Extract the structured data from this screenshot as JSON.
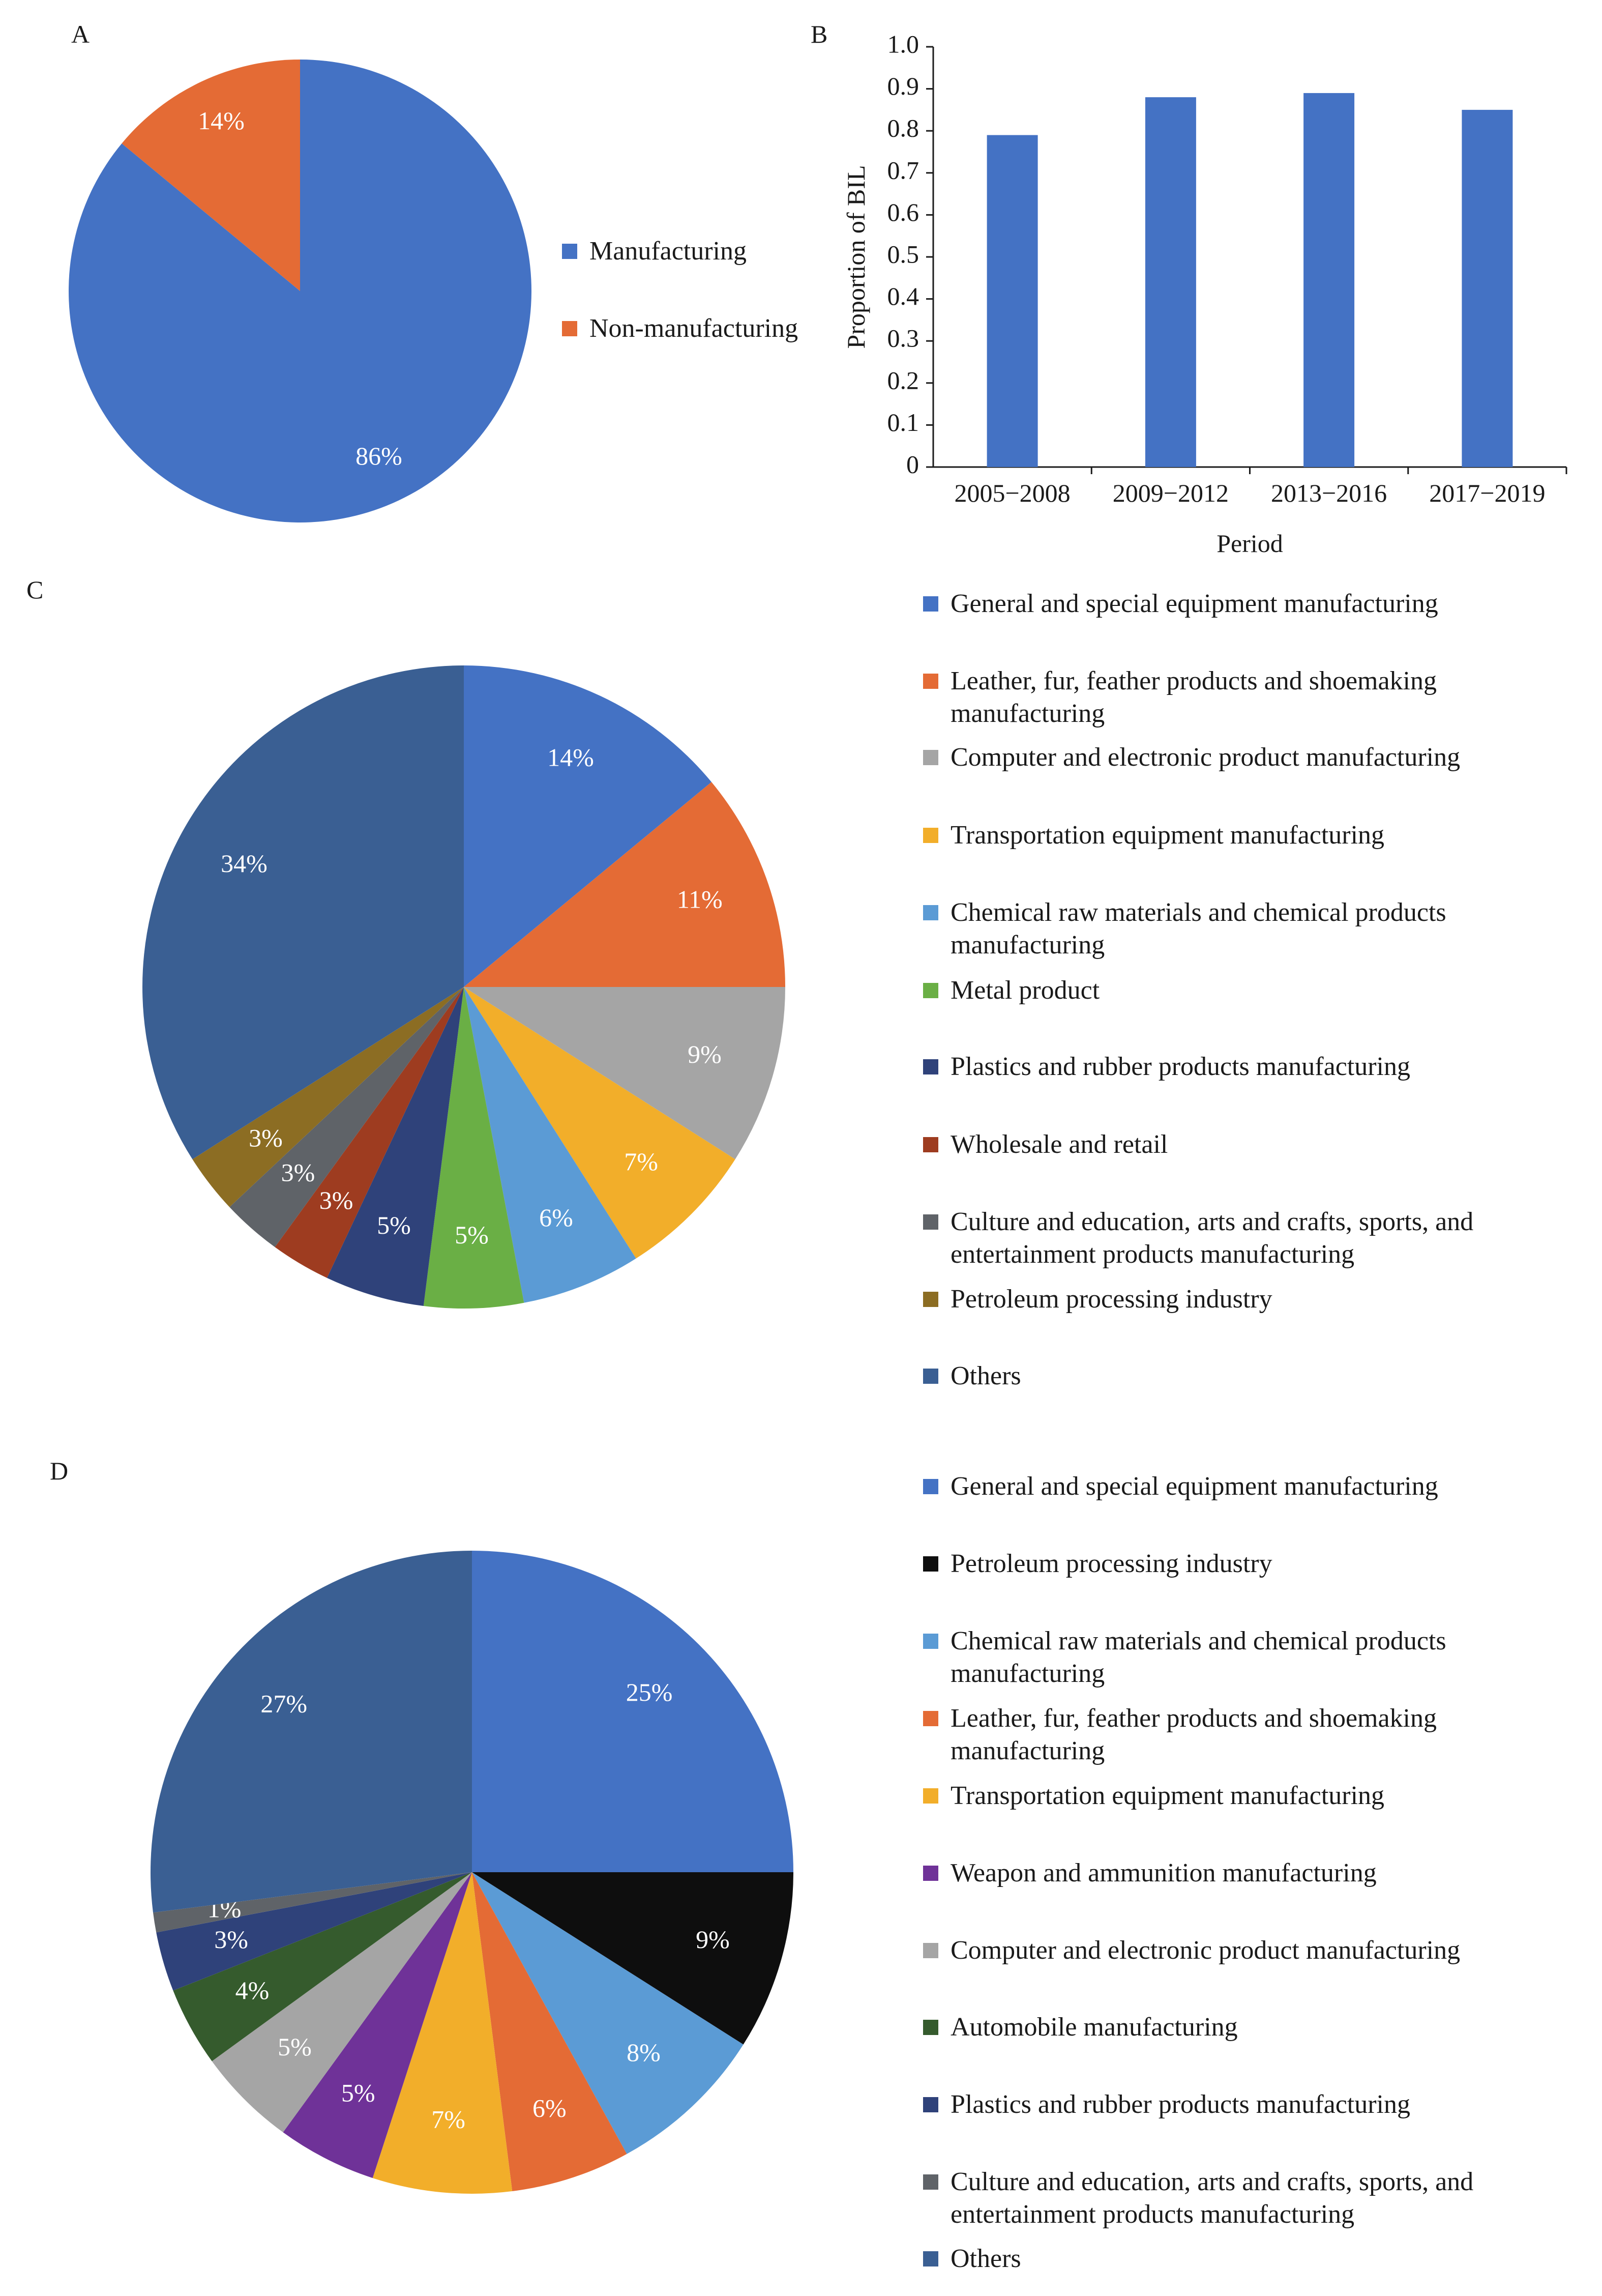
{
  "panels": {
    "a": "A",
    "b": "B",
    "c": "C",
    "d": "D"
  },
  "chart_data": [
    {
      "panel": "A",
      "type": "pie",
      "slices": [
        {
          "label": "Manufacturing",
          "value": 86,
          "display": "86%",
          "color": "#4472C4"
        },
        {
          "label": "Non-manufacturing",
          "value": 14,
          "display": "14%",
          "color": "#E46B35"
        }
      ],
      "legend_placement": "right"
    },
    {
      "panel": "B",
      "type": "bar",
      "categories": [
        "2005−2008",
        "2009−2012",
        "2013−2016",
        "2017−2019"
      ],
      "values": [
        0.79,
        0.88,
        0.89,
        0.85
      ],
      "color": "#4472C4",
      "xlabel": "Period",
      "ylabel": "Proportion of BIL",
      "ylim": [
        0,
        1.0
      ],
      "yticks": [
        "0",
        "0.1",
        "0.2",
        "0.3",
        "0.4",
        "0.5",
        "0.6",
        "0.7",
        "0.8",
        "0.9",
        "1.0"
      ],
      "grid": false
    },
    {
      "panel": "C",
      "type": "pie",
      "slices": [
        {
          "label": "General and special equipment manufacturing",
          "value": 14,
          "display": "14%",
          "color": "#4472C4"
        },
        {
          "label": "Leather, fur, feather products and shoemaking manufacturing",
          "value": 11,
          "display": "11%",
          "color": "#E46B35"
        },
        {
          "label": "Computer and electronic product manufacturing",
          "value": 9,
          "display": "9%",
          "color": "#A5A5A5"
        },
        {
          "label": "Transportation equipment manufacturing",
          "value": 7,
          "display": "7%",
          "color": "#F2AE2A"
        },
        {
          "label": "Chemical raw materials and chemical products manufacturing",
          "value": 6,
          "display": "6%",
          "color": "#5B9BD5"
        },
        {
          "label": "Metal product",
          "value": 5,
          "display": "5%",
          "color": "#6AAF45"
        },
        {
          "label": "Plastics and rubber products manufacturing",
          "value": 5,
          "display": "5%",
          "color": "#2F427A"
        },
        {
          "label": "Wholesale and retail",
          "value": 3,
          "display": "3%",
          "color": "#9E3C20"
        },
        {
          "label": "Culture and education, arts and crafts, sports, and entertainment products manufacturing",
          "value": 3,
          "display": "3%",
          "color": "#5F6368"
        },
        {
          "label": "Petroleum processing industry",
          "value": 3,
          "display": "3%",
          "color": "#8C6D23"
        },
        {
          "label": "Others",
          "value": 34,
          "display": "34%",
          "color": "#3A5F93"
        }
      ],
      "legend_placement": "right"
    },
    {
      "panel": "D",
      "type": "pie",
      "slices": [
        {
          "label": "General and special equipment manufacturing",
          "value": 25,
          "display": "25%",
          "color": "#4472C4"
        },
        {
          "label": "Petroleum processing industry",
          "value": 9,
          "display": "9%",
          "color": "#0E0E0E"
        },
        {
          "label": "Chemical raw materials and chemical products manufacturing",
          "value": 8,
          "display": "8%",
          "color": "#5B9BD5"
        },
        {
          "label": "Leather, fur, feather products and shoemaking manufacturing",
          "value": 6,
          "display": "6%",
          "color": "#E46B35"
        },
        {
          "label": "Transportation equipment manufacturing",
          "value": 7,
          "display": "7%",
          "color": "#F2AE2A"
        },
        {
          "label": "Weapon and ammunition manufacturing",
          "value": 5,
          "display": "5%",
          "color": "#6F3298"
        },
        {
          "label": "Computer and electronic product manufacturing",
          "value": 5,
          "display": "5%",
          "color": "#A5A5A5"
        },
        {
          "label": "Automobile manufacturing",
          "value": 4,
          "display": "4%",
          "color": "#355B2D"
        },
        {
          "label": "Plastics and rubber products manufacturing",
          "value": 3,
          "display": "3%",
          "color": "#2F427A"
        },
        {
          "label": "Culture and education, arts and crafts, sports, and entertainment products manufacturing",
          "value": 1,
          "display": "1%",
          "color": "#5F6368"
        },
        {
          "label": "Others",
          "value": 27,
          "display": "27%",
          "color": "#3A5F93"
        }
      ],
      "legend_placement": "right"
    }
  ]
}
